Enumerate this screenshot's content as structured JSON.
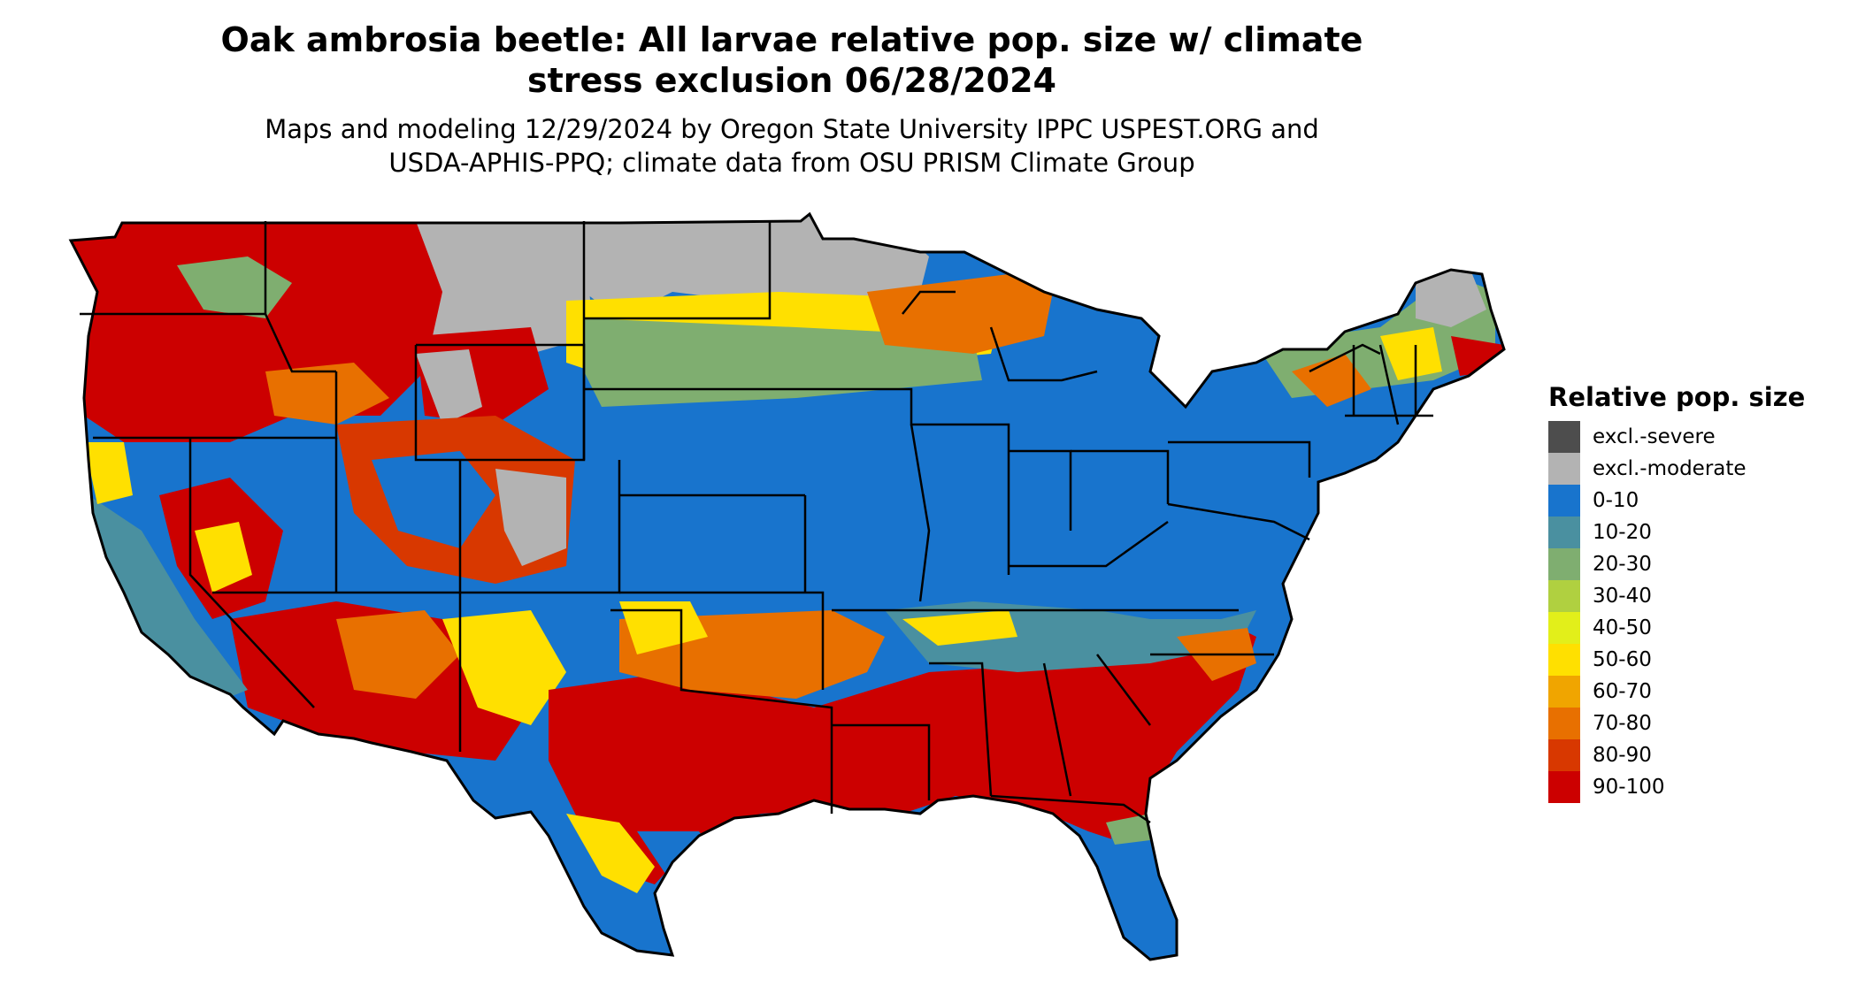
{
  "title_line1": "Oak ambrosia beetle: All larvae relative pop. size w/ climate",
  "title_line2": "stress exclusion 06/28/2024",
  "subtitle_line1": "Maps and modeling 12/29/2024 by Oregon State University IPPC USPEST.ORG and",
  "subtitle_line2": "USDA-APHIS-PPQ; climate data from OSU PRISM Climate Group",
  "legend": {
    "title": "Relative pop. size",
    "items": [
      {
        "label": "excl.-severe",
        "color": "#4d4d4d"
      },
      {
        "label": "excl.-moderate",
        "color": "#b3b3b3"
      },
      {
        "label": "0-10",
        "color": "#1874cd"
      },
      {
        "label": "10-20",
        "color": "#4a90a0"
      },
      {
        "label": "20-30",
        "color": "#7fae70"
      },
      {
        "label": "30-40",
        "color": "#b0d040"
      },
      {
        "label": "40-50",
        "color": "#e2ef1a"
      },
      {
        "label": "50-60",
        "color": "#ffe000"
      },
      {
        "label": "60-70",
        "color": "#f0a500"
      },
      {
        "label": "70-80",
        "color": "#e87000"
      },
      {
        "label": "80-90",
        "color": "#d83800"
      },
      {
        "label": "90-100",
        "color": "#cc0000"
      }
    ]
  }
}
